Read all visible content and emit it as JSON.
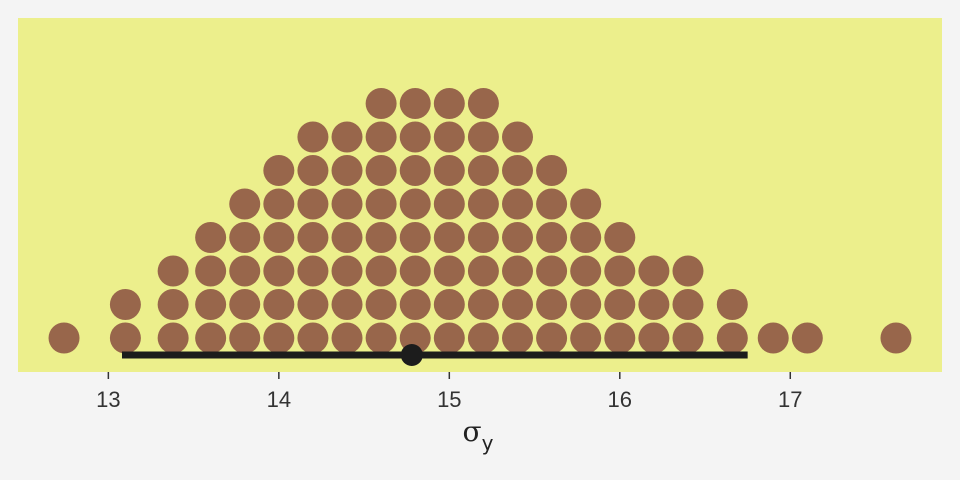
{
  "chart_data": {
    "type": "dotplot",
    "xlabel": "σ",
    "xlabel_subscript": "y",
    "x_ticks": [
      13,
      14,
      15,
      16,
      17
    ],
    "x_tick_labels": [
      "13",
      "14",
      "15",
      "16",
      "17"
    ],
    "xlim": [
      12.47,
      17.89
    ],
    "grid": false,
    "dot_color": "#98664b",
    "panel_color": "#ecef8c",
    "interval_color": "#1c1c1c",
    "bins": [
      {
        "x": 12.74,
        "count": 1
      },
      {
        "x": 13.1,
        "count": 2
      },
      {
        "x": 13.38,
        "count": 3
      },
      {
        "x": 13.6,
        "count": 4
      },
      {
        "x": 13.8,
        "count": 5
      },
      {
        "x": 14.0,
        "count": 6
      },
      {
        "x": 14.2,
        "count": 7
      },
      {
        "x": 14.4,
        "count": 7
      },
      {
        "x": 14.6,
        "count": 8
      },
      {
        "x": 14.8,
        "count": 8
      },
      {
        "x": 15.0,
        "count": 8
      },
      {
        "x": 15.2,
        "count": 8
      },
      {
        "x": 15.4,
        "count": 7
      },
      {
        "x": 15.6,
        "count": 6
      },
      {
        "x": 15.8,
        "count": 5
      },
      {
        "x": 16.0,
        "count": 4
      },
      {
        "x": 16.2,
        "count": 3
      },
      {
        "x": 16.4,
        "count": 3
      },
      {
        "x": 16.66,
        "count": 2
      },
      {
        "x": 16.9,
        "count": 1
      },
      {
        "x": 17.1,
        "count": 1
      },
      {
        "x": 17.62,
        "count": 1
      }
    ],
    "point_estimate": 14.78,
    "interval": [
      13.08,
      16.75
    ]
  }
}
